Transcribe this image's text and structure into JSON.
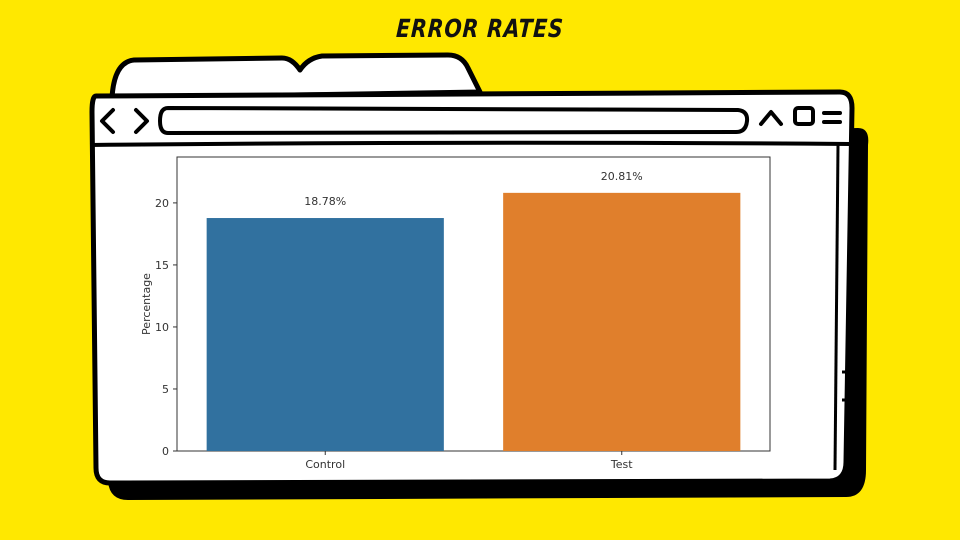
{
  "title": "ERROR RATES",
  "window": {
    "back_icon": "chevron-left-icon",
    "forward_icon": "chevron-right-icon",
    "minimize_icon": "caret-up-icon",
    "maximize_icon": "square-icon",
    "menu_icon": "menu-lines-icon",
    "address_value": ""
  },
  "colors": {
    "background": "#FFE800",
    "control_bar": "#31719F",
    "test_bar": "#E07F2C"
  },
  "chart_data": {
    "type": "bar",
    "categories": [
      "Control",
      "Test"
    ],
    "values": [
      18.78,
      20.81
    ],
    "data_labels": [
      "18.78%",
      "20.81%"
    ],
    "colors": [
      "#31719F",
      "#E07F2C"
    ],
    "title": "",
    "xlabel": "",
    "ylabel": "Percentage",
    "ylim": [
      0,
      23.7
    ],
    "yticks": [
      0,
      5,
      10,
      15,
      20
    ],
    "ytick_labels": [
      "0",
      "5",
      "10",
      "15",
      "20"
    ],
    "grid": false
  }
}
